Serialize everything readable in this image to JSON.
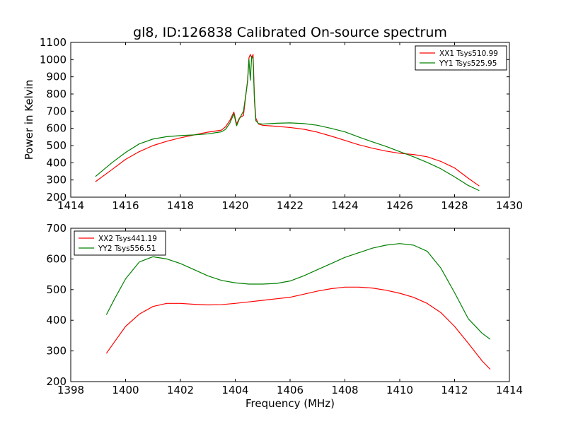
{
  "chart_data": [
    {
      "type": "line",
      "title": "gl8, ID:126838 Calibrated On-source spectrum",
      "xlabel": "",
      "ylabel": "Power in Kelvin",
      "xlim": [
        1414,
        1430
      ],
      "ylim": [
        200,
        1100
      ],
      "xticks": [
        1414,
        1416,
        1418,
        1420,
        1422,
        1424,
        1426,
        1428,
        1430
      ],
      "yticks": [
        200,
        300,
        400,
        500,
        600,
        700,
        800,
        900,
        1000,
        1100
      ],
      "grid": false,
      "legend_position": "top-right",
      "series": [
        {
          "name": "XX1 Tsys510.99",
          "color": "#ff0000",
          "x": [
            1414.9,
            1415.5,
            1416.0,
            1416.5,
            1417.0,
            1417.5,
            1418.0,
            1418.5,
            1419.0,
            1419.5,
            1419.65,
            1419.8,
            1419.95,
            1420.05,
            1420.15,
            1420.3,
            1420.45,
            1420.5,
            1420.55,
            1420.6,
            1420.65,
            1420.7,
            1420.75,
            1420.85,
            1421.0,
            1421.5,
            1422.0,
            1422.5,
            1423.0,
            1423.5,
            1424.0,
            1424.5,
            1425.0,
            1425.5,
            1426.0,
            1426.5,
            1427.0,
            1427.5,
            1428.0,
            1428.5,
            1428.9
          ],
          "y": [
            290,
            360,
            420,
            465,
            500,
            525,
            545,
            562,
            578,
            590,
            610,
            645,
            695,
            625,
            660,
            675,
            880,
            1010,
            1030,
            1010,
            1030,
            780,
            660,
            625,
            618,
            612,
            605,
            595,
            578,
            555,
            530,
            505,
            485,
            468,
            455,
            448,
            435,
            408,
            370,
            310,
            265
          ]
        },
        {
          "name": "YY1 Tsys525.95",
          "color": "#008000",
          "x": [
            1414.9,
            1415.5,
            1416.0,
            1416.5,
            1417.0,
            1417.5,
            1418.0,
            1418.5,
            1419.0,
            1419.5,
            1419.65,
            1419.8,
            1419.95,
            1420.05,
            1420.15,
            1420.3,
            1420.45,
            1420.5,
            1420.55,
            1420.6,
            1420.65,
            1420.7,
            1420.75,
            1420.85,
            1421.0,
            1421.5,
            1422.0,
            1422.5,
            1423.0,
            1423.5,
            1424.0,
            1424.5,
            1425.0,
            1425.5,
            1426.0,
            1426.5,
            1427.0,
            1427.5,
            1428.0,
            1428.5,
            1428.9
          ],
          "y": [
            320,
            400,
            460,
            510,
            538,
            552,
            558,
            562,
            568,
            580,
            595,
            630,
            685,
            615,
            655,
            700,
            870,
            1000,
            880,
            1020,
            1005,
            760,
            645,
            628,
            625,
            630,
            632,
            628,
            618,
            600,
            580,
            550,
            522,
            495,
            465,
            435,
            402,
            365,
            318,
            268,
            238
          ]
        }
      ]
    },
    {
      "type": "line",
      "title": "",
      "xlabel": "Frequency (MHz)",
      "ylabel": "",
      "xlim": [
        1398,
        1414
      ],
      "ylim": [
        200,
        700
      ],
      "xticks": [
        1398,
        1400,
        1402,
        1404,
        1406,
        1408,
        1410,
        1412,
        1414
      ],
      "yticks": [
        200,
        300,
        400,
        500,
        600,
        700
      ],
      "grid": false,
      "legend_position": "top-left",
      "series": [
        {
          "name": "XX2 Tsys441.19",
          "color": "#ff0000",
          "x": [
            1399.3,
            1399.6,
            1400.0,
            1400.5,
            1401.0,
            1401.5,
            1402.0,
            1402.5,
            1403.0,
            1403.5,
            1404.0,
            1404.5,
            1405.0,
            1405.5,
            1406.0,
            1406.5,
            1407.0,
            1407.5,
            1408.0,
            1408.5,
            1409.0,
            1409.5,
            1410.0,
            1410.5,
            1411.0,
            1411.5,
            1412.0,
            1412.5,
            1413.0,
            1413.3
          ],
          "y": [
            292,
            330,
            380,
            420,
            445,
            455,
            455,
            452,
            450,
            451,
            455,
            460,
            465,
            470,
            475,
            485,
            495,
            503,
            508,
            508,
            505,
            498,
            488,
            475,
            455,
            425,
            380,
            325,
            268,
            240
          ]
        },
        {
          "name": "YY2 Tsys556.51",
          "color": "#008000",
          "x": [
            1399.3,
            1399.6,
            1400.0,
            1400.5,
            1401.0,
            1401.5,
            1402.0,
            1402.5,
            1403.0,
            1403.5,
            1404.0,
            1404.5,
            1405.0,
            1405.5,
            1406.0,
            1406.5,
            1407.0,
            1407.5,
            1408.0,
            1408.5,
            1409.0,
            1409.5,
            1410.0,
            1410.5,
            1411.0,
            1411.5,
            1412.0,
            1412.5,
            1413.0,
            1413.3
          ],
          "y": [
            418,
            470,
            535,
            590,
            607,
            600,
            585,
            565,
            545,
            530,
            522,
            518,
            518,
            520,
            528,
            545,
            565,
            585,
            605,
            620,
            635,
            645,
            650,
            645,
            625,
            570,
            490,
            405,
            358,
            338
          ]
        }
      ]
    }
  ]
}
